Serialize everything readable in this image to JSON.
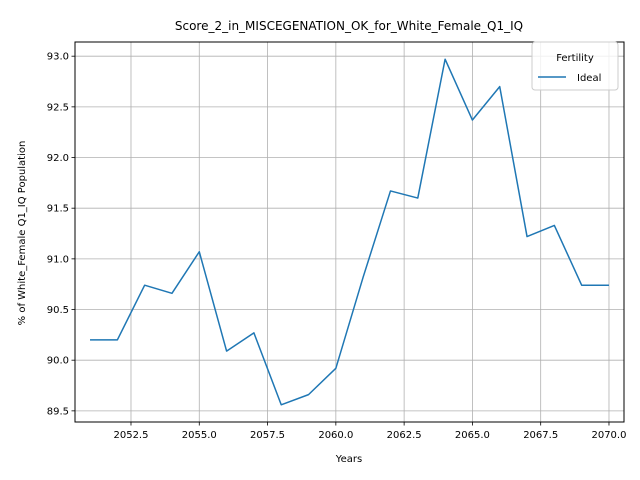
{
  "chart_data": {
    "type": "line",
    "title": "Score_2_in_MISCEGENATION_OK_for_White_Female_Q1_IQ",
    "xlabel": "Years",
    "ylabel": "% of White_Female Q1_IQ Population",
    "xlim": [
      2050.45,
      2070.55
    ],
    "ylim": [
      89.39,
      93.14
    ],
    "x_ticks": [
      2052.5,
      2055.0,
      2057.5,
      2060.0,
      2062.5,
      2065.0,
      2067.5,
      2070.0
    ],
    "x_tick_labels": [
      "2052.5",
      "2055.0",
      "2057.5",
      "2060.0",
      "2062.5",
      "2065.0",
      "2067.5",
      "2070.0"
    ],
    "y_ticks": [
      89.5,
      90.0,
      90.5,
      91.0,
      91.5,
      92.0,
      92.5,
      93.0
    ],
    "y_tick_labels": [
      "89.5",
      "90.0",
      "90.5",
      "91.0",
      "91.5",
      "92.0",
      "92.5",
      "93.0"
    ],
    "grid": true,
    "legend": {
      "title": "Fertility",
      "position": "top-right"
    },
    "series": [
      {
        "name": "Ideal",
        "color": "#1f77b4",
        "x": [
          2051,
          2052,
          2053,
          2054,
          2055,
          2056,
          2057,
          2058,
          2059,
          2060,
          2061,
          2062,
          2063,
          2064,
          2065,
          2066,
          2067,
          2068,
          2069,
          2070
        ],
        "y": [
          90.2,
          90.2,
          90.74,
          90.66,
          91.07,
          90.09,
          90.27,
          89.56,
          89.66,
          89.92,
          90.82,
          91.67,
          91.6,
          92.97,
          92.37,
          92.7,
          91.22,
          91.33,
          90.74,
          90.74
        ]
      }
    ]
  }
}
